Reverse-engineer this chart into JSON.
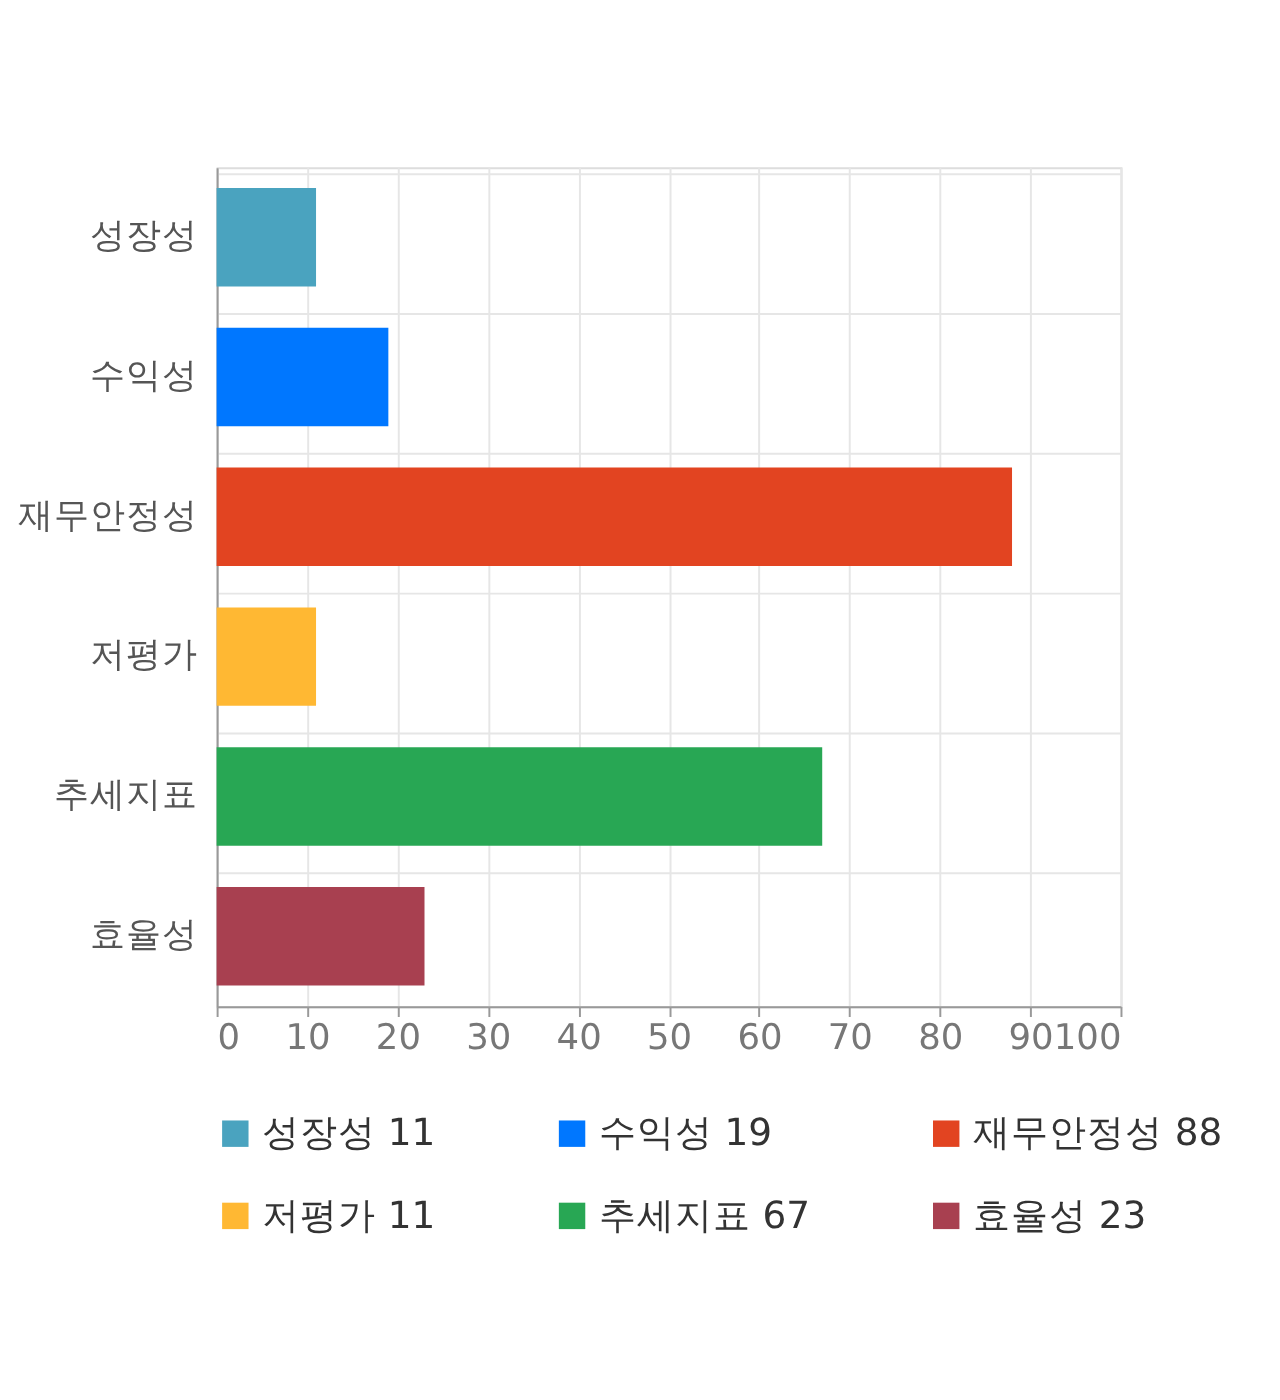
{
  "chart_data": {
    "type": "bar",
    "orientation": "horizontal",
    "categories": [
      "성장성",
      "수익성",
      "재무안정성",
      "저평가",
      "추세지표",
      "효율성"
    ],
    "series": [
      {
        "name": "성장성 11",
        "color": "#4aa3bf",
        "values": [
          11,
          null,
          null,
          null,
          null,
          null
        ]
      },
      {
        "name": "수익성 19",
        "color": "#0077ff",
        "values": [
          null,
          19,
          null,
          null,
          null,
          null
        ]
      },
      {
        "name": "재무안정성 88",
        "color": "#e24421",
        "values": [
          null,
          null,
          88,
          null,
          null,
          null
        ]
      },
      {
        "name": "저평가 11",
        "color": "#ffb833",
        "values": [
          null,
          null,
          null,
          11,
          null,
          null
        ]
      },
      {
        "name": "추세지표 67",
        "color": "#28a754",
        "values": [
          null,
          null,
          null,
          null,
          67,
          null
        ]
      },
      {
        "name": "효율성 23",
        "color": "#a84050",
        "values": [
          null,
          null,
          null,
          null,
          null,
          23
        ]
      }
    ],
    "xlim": [
      0,
      100
    ],
    "xticks": [
      0,
      10,
      20,
      30,
      40,
      50,
      60,
      70,
      80,
      90,
      100
    ],
    "grid": true,
    "legend": "bottom"
  }
}
